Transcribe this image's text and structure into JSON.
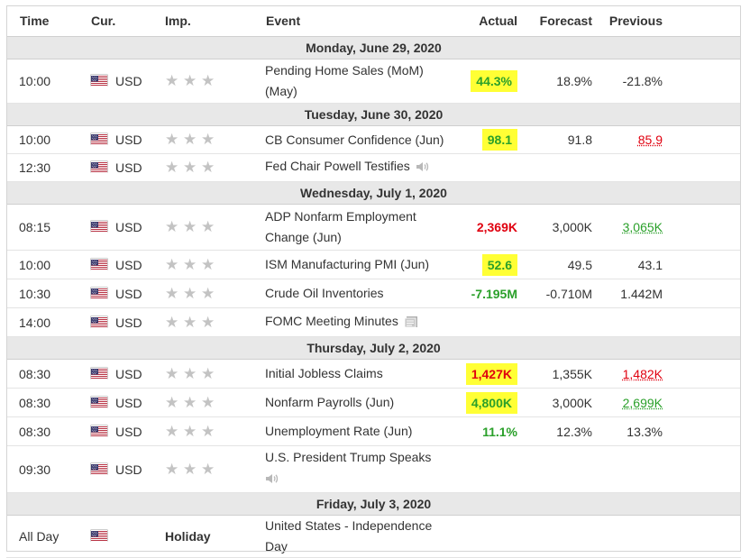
{
  "headers": {
    "time": "Time",
    "currency": "Cur.",
    "importance": "Imp.",
    "event": "Event",
    "actual": "Actual",
    "forecast": "Forecast",
    "previous": "Previous"
  },
  "colors": {
    "positive": "#2aa02a",
    "negative": "#e0000f",
    "highlight": "#ffff35",
    "day_header_bg": "#e8e8e8"
  },
  "days": [
    {
      "date": "Monday, June 29, 2020",
      "events": [
        {
          "time": "10:00",
          "currency": "USD",
          "event": "Pending Home Sales (MoM) (May)",
          "actual": "44.3%",
          "actual_color": "up",
          "highlighted": true,
          "forecast": "18.9%",
          "previous": "-21.8%",
          "previous_color": ""
        }
      ]
    },
    {
      "date": "Tuesday, June 30, 2020",
      "events": [
        {
          "time": "10:00",
          "currency": "USD",
          "event": "CB Consumer Confidence (Jun)",
          "actual": "98.1",
          "actual_color": "up",
          "highlighted": true,
          "forecast": "91.8",
          "previous": "85.9",
          "previous_color": "down"
        },
        {
          "time": "12:30",
          "currency": "USD",
          "event": "Fed Chair Powell Testifies",
          "icon": "speaker-icon",
          "actual": "",
          "forecast": "",
          "previous": ""
        }
      ]
    },
    {
      "date": "Wednesday, July 1, 2020",
      "events": [
        {
          "time": "08:15",
          "currency": "USD",
          "event": "ADP Nonfarm Employment Change (Jun)",
          "actual": "2,369K",
          "actual_color": "down",
          "highlighted": false,
          "forecast": "3,000K",
          "previous": "3,065K",
          "previous_color": "up"
        },
        {
          "time": "10:00",
          "currency": "USD",
          "event": "ISM Manufacturing PMI (Jun)",
          "actual": "52.6",
          "actual_color": "up",
          "highlighted": true,
          "forecast": "49.5",
          "previous": "43.1",
          "previous_color": ""
        },
        {
          "time": "10:30",
          "currency": "USD",
          "event": "Crude Oil Inventories",
          "actual": "-7.195M",
          "actual_color": "up",
          "highlighted": false,
          "forecast": "-0.710M",
          "previous": "1.442M",
          "previous_color": ""
        },
        {
          "time": "14:00",
          "currency": "USD",
          "event": "FOMC Meeting Minutes",
          "icon": "document-icon",
          "actual": "",
          "forecast": "",
          "previous": ""
        }
      ]
    },
    {
      "date": "Thursday, July 2, 2020",
      "events": [
        {
          "time": "08:30",
          "currency": "USD",
          "event": "Initial Jobless Claims",
          "actual": "1,427K",
          "actual_color": "down",
          "highlighted": true,
          "forecast": "1,355K",
          "previous": "1,482K",
          "previous_color": "down"
        },
        {
          "time": "08:30",
          "currency": "USD",
          "event": "Nonfarm Payrolls (Jun)",
          "actual": "4,800K",
          "actual_color": "up",
          "highlighted": true,
          "forecast": "3,000K",
          "previous": "2,699K",
          "previous_color": "up"
        },
        {
          "time": "08:30",
          "currency": "USD",
          "event": "Unemployment Rate (Jun)",
          "actual": "11.1%",
          "actual_color": "up",
          "highlighted": false,
          "forecast": "12.3%",
          "previous": "13.3%",
          "previous_color": ""
        },
        {
          "time": "09:30",
          "currency": "USD",
          "event": "U.S. President Trump Speaks",
          "icon": "speaker-icon",
          "icon_newline": true,
          "actual": "",
          "forecast": "",
          "previous": ""
        }
      ]
    },
    {
      "date": "Friday, July 3, 2020",
      "events": [
        {
          "time": "All Day",
          "currency": "",
          "importance_text": "Holiday",
          "event": "United States - Independence Day",
          "actual": "",
          "forecast": "",
          "previous": ""
        }
      ]
    }
  ]
}
